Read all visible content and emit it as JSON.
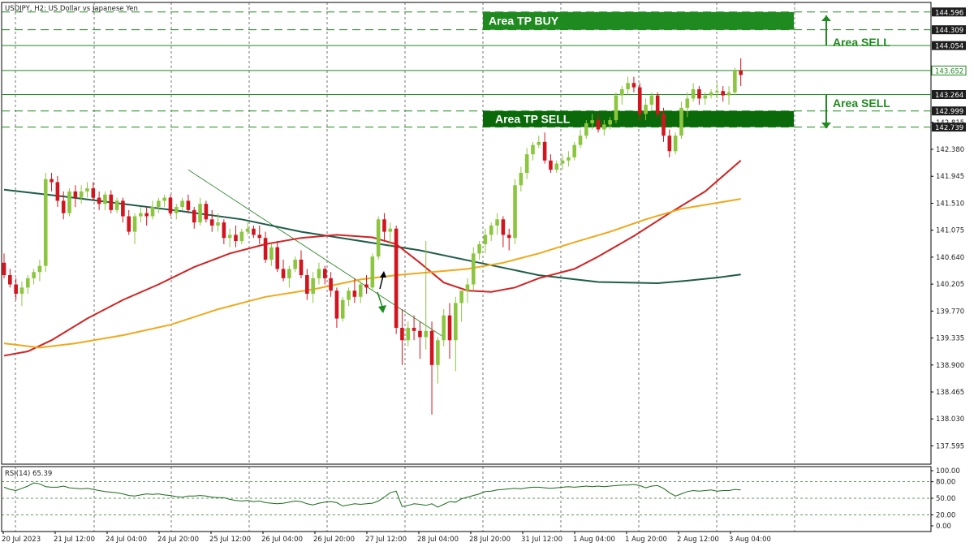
{
  "chart_data": {
    "type": "candlestick",
    "title": "USDJPY, H2:  US Dollar vs Japanese Yen",
    "x_tick_labels": [
      "20 Jul 2023",
      "21 Jul 12:00",
      "24 Jul 04:00",
      "24 Jul 20:00",
      "25 Jul 12:00",
      "26 Jul 04:00",
      "26 Jul 20:00",
      "27 Jul 12:00",
      "28 Jul 04:00",
      "28 Jul 20:00",
      "31 Jul 12:00",
      "1 Aug 04:00",
      "1 Aug 20:00",
      "2 Aug 12:00",
      "3 Aug 04:00"
    ],
    "y_tick_labels": [
      "137.595",
      "138.030",
      "138.465",
      "138.900",
      "139.335",
      "139.770",
      "140.205",
      "140.640",
      "141.075",
      "141.510",
      "141.945",
      "142.380",
      "142.815"
    ],
    "ylim": [
      137.3,
      144.75
    ],
    "level_labels": [
      "144.596",
      "144.309",
      "144.054",
      "143.652",
      "143.264",
      "142.999",
      "142.739"
    ],
    "levels": [
      {
        "value": 144.596,
        "style": "dashed"
      },
      {
        "value": 144.309,
        "style": "dashed"
      },
      {
        "value": 144.054,
        "style": "solid"
      },
      {
        "value": 143.652,
        "style": "solid",
        "highlight": true
      },
      {
        "value": 143.264,
        "style": "solid"
      },
      {
        "value": 142.999,
        "style": "dashed"
      },
      {
        "value": 142.739,
        "style": "dashed"
      }
    ],
    "zones": [
      {
        "label": "Area TP BUY",
        "top": 144.596,
        "bottom": 144.309
      },
      {
        "label": "Area TP SELL",
        "top": 142.999,
        "bottom": 142.739
      }
    ],
    "side_labels": [
      {
        "label": "Area SELL",
        "direction": "up",
        "from": 144.054,
        "to": 144.54
      },
      {
        "label": "Area SELL",
        "direction": "down",
        "from": 143.264,
        "to": 142.72
      }
    ],
    "candles": [
      [
        140.55,
        140.7,
        140.3,
        140.35
      ],
      [
        140.35,
        140.45,
        140.15,
        140.2
      ],
      [
        140.2,
        140.3,
        139.95,
        140.05
      ],
      [
        140.05,
        140.25,
        139.85,
        140.15
      ],
      [
        140.15,
        140.35,
        140.05,
        140.3
      ],
      [
        140.3,
        140.45,
        140.2,
        140.4
      ],
      [
        140.4,
        140.6,
        140.25,
        140.5
      ],
      [
        140.5,
        142.0,
        140.4,
        141.9
      ],
      [
        141.9,
        142.0,
        141.7,
        141.85
      ],
      [
        141.85,
        141.95,
        141.45,
        141.55
      ],
      [
        141.55,
        141.7,
        141.25,
        141.35
      ],
      [
        141.35,
        141.75,
        141.3,
        141.7
      ],
      [
        141.7,
        141.8,
        141.45,
        141.6
      ],
      [
        141.6,
        141.8,
        141.5,
        141.7
      ],
      [
        141.7,
        141.85,
        141.6,
        141.75
      ],
      [
        141.75,
        141.85,
        141.55,
        141.6
      ],
      [
        141.6,
        141.7,
        141.4,
        141.5
      ],
      [
        141.5,
        141.7,
        141.4,
        141.65
      ],
      [
        141.65,
        141.72,
        141.35,
        141.4
      ],
      [
        141.4,
        141.6,
        141.35,
        141.55
      ],
      [
        141.55,
        141.6,
        141.2,
        141.3
      ],
      [
        141.3,
        141.4,
        141.0,
        141.05
      ],
      [
        141.05,
        141.35,
        140.85,
        141.3
      ],
      [
        141.3,
        141.45,
        141.2,
        141.35
      ],
      [
        141.35,
        141.45,
        141.15,
        141.3
      ],
      [
        141.3,
        141.55,
        141.25,
        141.45
      ],
      [
        141.45,
        141.6,
        141.35,
        141.55
      ],
      [
        141.55,
        141.65,
        141.45,
        141.6
      ],
      [
        141.6,
        141.65,
        141.3,
        141.35
      ],
      [
        141.35,
        141.5,
        141.25,
        141.45
      ],
      [
        141.45,
        141.6,
        141.4,
        141.55
      ],
      [
        141.55,
        141.65,
        141.35,
        141.4
      ],
      [
        141.4,
        141.45,
        141.1,
        141.2
      ],
      [
        141.2,
        141.6,
        141.15,
        141.5
      ],
      [
        141.5,
        141.55,
        141.2,
        141.25
      ],
      [
        141.25,
        141.4,
        141.05,
        141.15
      ],
      [
        141.15,
        141.35,
        141.05,
        141.2
      ],
      [
        141.2,
        141.25,
        140.85,
        140.95
      ],
      [
        140.95,
        141.1,
        140.8,
        141.0
      ],
      [
        141.0,
        141.15,
        140.8,
        140.9
      ],
      [
        140.9,
        141.1,
        140.85,
        141.05
      ],
      [
        141.05,
        141.2,
        141.0,
        141.1
      ],
      [
        141.1,
        141.15,
        140.95,
        141.0
      ],
      [
        141.0,
        141.15,
        140.85,
        140.95
      ],
      [
        140.95,
        141.05,
        140.55,
        140.6
      ],
      [
        140.6,
        140.85,
        140.5,
        140.8
      ],
      [
        140.8,
        140.9,
        140.4,
        140.45
      ],
      [
        140.45,
        140.6,
        140.25,
        140.3
      ],
      [
        140.3,
        140.5,
        140.15,
        140.45
      ],
      [
        140.45,
        140.65,
        140.4,
        140.6
      ],
      [
        140.6,
        140.75,
        140.3,
        140.35
      ],
      [
        140.35,
        140.45,
        139.95,
        140.05
      ],
      [
        140.05,
        140.4,
        139.9,
        140.3
      ],
      [
        140.3,
        140.55,
        140.2,
        140.45
      ],
      [
        140.45,
        140.5,
        140.2,
        140.3
      ],
      [
        140.3,
        140.4,
        140.0,
        140.1
      ],
      [
        140.1,
        140.15,
        139.5,
        139.65
      ],
      [
        139.65,
        140.0,
        139.6,
        139.95
      ],
      [
        139.95,
        140.15,
        139.85,
        140.1
      ],
      [
        140.1,
        140.3,
        139.9,
        140.0
      ],
      [
        140.0,
        140.25,
        139.9,
        140.2
      ],
      [
        140.2,
        140.35,
        140.05,
        140.15
      ],
      [
        140.15,
        140.7,
        140.1,
        140.65
      ],
      [
        140.65,
        141.3,
        140.6,
        141.25
      ],
      [
        141.25,
        141.35,
        140.9,
        141.05
      ],
      [
        141.05,
        141.2,
        140.8,
        141.1
      ],
      [
        141.1,
        141.15,
        139.4,
        139.5
      ],
      [
        139.5,
        139.8,
        138.9,
        139.3
      ],
      [
        139.3,
        139.6,
        139.2,
        139.5
      ],
      [
        139.5,
        139.7,
        139.3,
        139.45
      ],
      [
        139.45,
        139.6,
        139.0,
        139.35
      ],
      [
        139.35,
        140.9,
        139.15,
        139.45
      ],
      [
        139.45,
        139.6,
        138.1,
        138.9
      ],
      [
        138.9,
        139.35,
        138.6,
        139.3
      ],
      [
        139.3,
        139.8,
        139.2,
        139.7
      ],
      [
        139.7,
        139.9,
        139.0,
        139.3
      ],
      [
        139.3,
        140.0,
        138.8,
        139.9
      ],
      [
        139.9,
        140.1,
        139.6,
        140.1
      ],
      [
        140.1,
        140.3,
        139.9,
        140.2
      ],
      [
        140.2,
        140.8,
        140.1,
        140.7
      ],
      [
        140.7,
        140.9,
        140.6,
        140.85
      ],
      [
        140.85,
        141.1,
        140.7,
        141.0
      ],
      [
        141.0,
        141.2,
        140.9,
        141.15
      ],
      [
        141.15,
        141.35,
        141.0,
        141.25
      ],
      [
        141.25,
        141.3,
        140.8,
        141.0
      ],
      [
        141.0,
        141.1,
        140.75,
        140.95
      ],
      [
        140.95,
        141.9,
        140.85,
        141.8
      ],
      [
        141.8,
        142.1,
        141.7,
        142.0
      ],
      [
        142.0,
        142.4,
        141.9,
        142.3
      ],
      [
        142.3,
        142.5,
        142.2,
        142.45
      ],
      [
        142.45,
        142.6,
        142.4,
        142.5
      ],
      [
        142.5,
        142.65,
        142.15,
        142.2
      ],
      [
        142.2,
        142.3,
        142.0,
        142.05
      ],
      [
        142.05,
        142.2,
        142.0,
        142.15
      ],
      [
        142.15,
        142.3,
        142.05,
        142.2
      ],
      [
        142.2,
        142.35,
        142.1,
        142.25
      ],
      [
        142.25,
        142.5,
        142.2,
        142.45
      ],
      [
        142.45,
        142.7,
        142.4,
        142.6
      ],
      [
        142.6,
        142.85,
        142.55,
        142.8
      ],
      [
        142.8,
        142.95,
        142.7,
        142.85
      ],
      [
        142.85,
        142.95,
        142.65,
        142.7
      ],
      [
        142.7,
        142.85,
        142.6,
        142.78
      ],
      [
        142.78,
        142.9,
        142.7,
        142.85
      ],
      [
        142.85,
        143.3,
        142.8,
        143.25
      ],
      [
        143.25,
        143.4,
        143.1,
        143.35
      ],
      [
        143.35,
        143.55,
        143.25,
        143.45
      ],
      [
        143.45,
        143.55,
        143.3,
        143.38
      ],
      [
        143.38,
        143.45,
        142.85,
        142.95
      ],
      [
        142.95,
        143.2,
        142.85,
        143.1
      ],
      [
        143.1,
        143.3,
        143.0,
        143.25
      ],
      [
        143.25,
        143.3,
        142.9,
        142.95
      ],
      [
        142.95,
        143.05,
        142.5,
        142.6
      ],
      [
        142.6,
        142.7,
        142.25,
        142.35
      ],
      [
        142.35,
        142.65,
        142.3,
        142.6
      ],
      [
        142.6,
        143.15,
        142.55,
        143.05
      ],
      [
        143.05,
        143.3,
        142.9,
        143.2
      ],
      [
        143.2,
        143.45,
        143.15,
        143.35
      ],
      [
        143.35,
        143.4,
        143.1,
        143.2
      ],
      [
        143.2,
        143.3,
        143.1,
        143.25
      ],
      [
        143.25,
        143.35,
        143.2,
        143.3
      ],
      [
        143.3,
        143.45,
        143.2,
        143.32
      ],
      [
        143.32,
        143.4,
        143.15,
        143.25
      ],
      [
        143.25,
        143.4,
        143.1,
        143.3
      ],
      [
        143.3,
        143.7,
        143.25,
        143.65
      ],
      [
        143.65,
        143.85,
        143.4,
        143.58
      ]
    ],
    "ma_series": [
      {
        "color": "#1f5c4a",
        "points": [
          [
            0,
            141.73
          ],
          [
            10,
            141.62
          ],
          [
            20,
            141.5
          ],
          [
            30,
            141.38
          ],
          [
            40,
            141.25
          ],
          [
            50,
            141.05
          ],
          [
            60,
            140.9
          ],
          [
            70,
            140.75
          ],
          [
            80,
            140.55
          ],
          [
            90,
            140.35
          ],
          [
            100,
            140.24
          ],
          [
            110,
            140.22
          ],
          [
            115,
            140.26
          ],
          [
            120,
            140.31
          ],
          [
            124,
            140.36
          ]
        ]
      },
      {
        "color": "#d22323",
        "points": [
          [
            0,
            139.05
          ],
          [
            4,
            139.12
          ],
          [
            8,
            139.3
          ],
          [
            14,
            139.65
          ],
          [
            20,
            139.95
          ],
          [
            26,
            140.2
          ],
          [
            32,
            140.48
          ],
          [
            38,
            140.7
          ],
          [
            44,
            140.85
          ],
          [
            50,
            140.95
          ],
          [
            56,
            141.0
          ],
          [
            62,
            140.96
          ],
          [
            66,
            140.85
          ],
          [
            70,
            140.55
          ],
          [
            74,
            140.23
          ],
          [
            78,
            140.1
          ],
          [
            82,
            140.08
          ],
          [
            86,
            140.15
          ],
          [
            90,
            140.3
          ],
          [
            96,
            140.45
          ],
          [
            100,
            140.65
          ],
          [
            106,
            140.98
          ],
          [
            112,
            141.35
          ],
          [
            118,
            141.7
          ],
          [
            124,
            142.2
          ]
        ]
      },
      {
        "color": "#f0a81a",
        "points": [
          [
            0,
            139.25
          ],
          [
            6,
            139.18
          ],
          [
            12,
            139.25
          ],
          [
            20,
            139.38
          ],
          [
            28,
            139.55
          ],
          [
            36,
            139.8
          ],
          [
            44,
            140.0
          ],
          [
            52,
            140.12
          ],
          [
            60,
            140.28
          ],
          [
            66,
            140.35
          ],
          [
            72,
            140.4
          ],
          [
            78,
            140.45
          ],
          [
            84,
            140.55
          ],
          [
            90,
            140.7
          ],
          [
            96,
            140.88
          ],
          [
            102,
            141.05
          ],
          [
            108,
            141.25
          ],
          [
            114,
            141.42
          ],
          [
            124,
            141.58
          ]
        ]
      }
    ],
    "trendline": {
      "from": [
        31,
        142.05
      ],
      "to": [
        74,
        139.35
      ]
    },
    "rsi": {
      "label": "RSI(14) 65.39",
      "ylim": [
        0,
        100
      ],
      "tick_labels": [
        "100.00",
        "80.00",
        "50.00",
        "20.00",
        "0.00"
      ],
      "levels": [
        80,
        50,
        20
      ],
      "values": [
        70,
        66,
        64,
        68,
        72,
        78,
        76,
        71,
        70,
        70,
        72,
        69,
        68,
        67,
        68,
        66,
        64,
        62,
        61,
        60,
        58,
        55,
        54,
        56,
        58,
        57,
        58,
        56,
        55,
        53,
        52,
        54,
        54,
        55,
        54,
        52,
        51,
        51,
        48,
        46,
        45,
        46,
        44,
        45,
        42,
        41,
        40,
        41,
        43,
        45,
        44,
        40,
        38,
        41,
        43,
        44,
        42,
        36,
        38,
        40,
        39,
        40,
        41,
        45,
        52,
        60,
        63,
        35,
        37,
        40,
        39,
        37,
        40,
        34,
        39,
        44,
        43,
        49,
        52,
        55,
        58,
        62,
        63,
        65,
        66,
        67,
        68,
        67,
        69,
        70,
        70,
        69,
        68,
        69,
        70,
        71,
        70,
        71,
        72,
        71,
        72,
        71,
        72,
        73,
        74,
        74,
        75,
        73,
        69,
        72,
        73,
        68,
        60,
        54,
        58,
        62,
        64,
        63,
        64,
        65,
        63,
        64,
        64,
        66,
        65
      ]
    }
  }
}
